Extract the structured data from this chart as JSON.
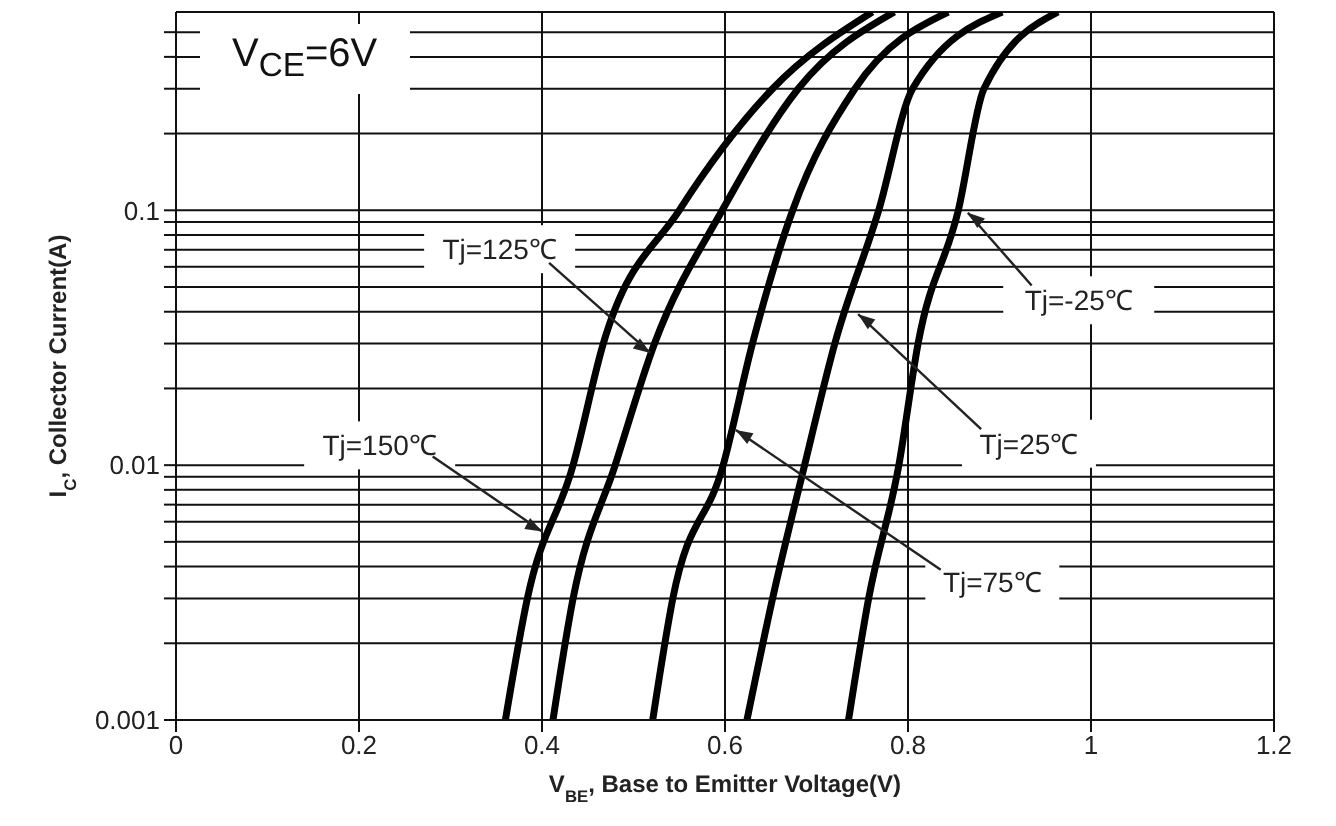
{
  "chart_data": {
    "type": "line",
    "xlabel": "V$_{BE}$, Base to Emitter Voltage(V)",
    "ylabel": "I$_{C}$, Collector Current(A)",
    "xlim": [
      0,
      1.2
    ],
    "xticks": [
      0,
      0.2,
      0.4,
      0.6,
      0.8,
      1,
      1.2
    ],
    "ylim": [
      0.001,
      0.6
    ],
    "log": "y",
    "yticks": [
      0.001,
      {
        "value": 0.002,
        "label": null
      },
      {
        "value": 0.003,
        "label": null
      },
      {
        "value": 0.004,
        "label": null
      },
      {
        "value": 0.005,
        "label": null
      },
      {
        "value": 0.006,
        "label": null
      },
      {
        "value": 0.007,
        "label": null
      },
      {
        "value": 0.008,
        "label": null
      },
      {
        "value": 0.009,
        "label": null
      },
      0.01,
      {
        "value": 0.02,
        "label": null
      },
      {
        "value": 0.03,
        "label": null
      },
      {
        "value": 0.04,
        "label": null
      },
      {
        "value": 0.05,
        "label": null
      },
      {
        "value": 0.06,
        "label": null
      },
      {
        "value": 0.07,
        "label": null
      },
      {
        "value": 0.08,
        "label": null
      },
      {
        "value": 0.09,
        "label": null
      },
      0.1,
      {
        "value": 0.2,
        "label": null
      },
      {
        "value": 0.3,
        "label": null
      },
      {
        "value": 0.4,
        "label": null
      },
      {
        "value": 0.5,
        "label": null
      }
    ],
    "grid": true,
    "marker": "none",
    "line_style": "solid",
    "series": [
      {
        "color": "#000000",
        "x": [
          0.36,
          0.384,
          0.434,
          0.467,
          0.55,
          0.652,
          0.761
        ],
        "values": [
          0.001,
          0.003,
          0.01,
          0.03,
          0.1,
          0.3,
          0.6
        ]
      },
      {
        "color": "#000000",
        "x": [
          0.412,
          0.434,
          0.48,
          0.523,
          0.597,
          0.68,
          0.785
        ],
        "values": [
          0.001,
          0.003,
          0.01,
          0.03,
          0.1,
          0.3,
          0.6
        ]
      },
      {
        "color": "#000000",
        "x": [
          0.521,
          0.543,
          0.598,
          0.63,
          0.674,
          0.742,
          0.844
        ],
        "values": [
          0.001,
          0.003,
          0.01,
          0.03,
          0.1,
          0.3,
          0.6
        ]
      },
      {
        "color": "#000000",
        "x": [
          0.624,
          0.652,
          0.687,
          0.72,
          0.768,
          0.805,
          0.903
        ],
        "values": [
          0.001,
          0.003,
          0.01,
          0.03,
          0.1,
          0.3,
          0.6
        ]
      },
      {
        "color": "#000000",
        "x": [
          0.735,
          0.757,
          0.79,
          0.811,
          0.855,
          0.883,
          0.964
        ],
        "values": [
          0.001,
          0.003,
          0.01,
          0.03,
          0.1,
          0.3,
          0.6
        ]
      }
    ],
    "annotations": [
      "V$_{CE}$=6V",
      {
        "text": "Tj=125℃",
        "x": 0.522,
        "y": 0.027
      },
      {
        "text": "Tj=-25℃",
        "x": 0.862,
        "y": 0.1
      },
      {
        "text": "Tj=25℃",
        "x": 0.742,
        "y": 0.04
      },
      {
        "text": "Tj=75℃",
        "x": 0.608,
        "y": 0.014
      },
      {
        "text": "Tj=150℃",
        "x": 0.404,
        "y": 0.0054
      }
    ]
  }
}
